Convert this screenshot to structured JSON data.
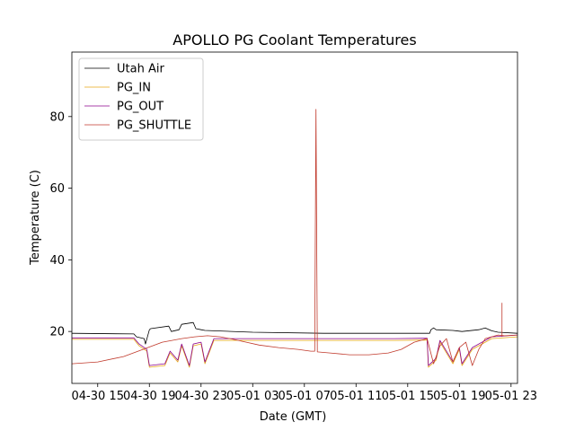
{
  "chart_data": {
    "type": "line",
    "title": "APOLLO PG Coolant Temperatures",
    "xlabel": "Date (GMT)",
    "ylabel": "Temperature (C)",
    "x_unit": "hours since 04-30 12:00 GMT",
    "xlim": [
      1.0,
      35.5
    ],
    "ylim": [
      5.5,
      98
    ],
    "yticks": [
      20,
      40,
      60,
      80
    ],
    "xticks": [
      {
        "value": 3,
        "label": "04-30 15"
      },
      {
        "value": 7,
        "label": "04-30 19"
      },
      {
        "value": 11,
        "label": "04-30 23"
      },
      {
        "value": 15,
        "label": "05-01 03"
      },
      {
        "value": 19,
        "label": "05-01 07"
      },
      {
        "value": 23,
        "label": "05-01 11"
      },
      {
        "value": 27,
        "label": "05-01 15"
      },
      {
        "value": 31,
        "label": "05-01 19"
      },
      {
        "value": 35,
        "label": "05-01 23"
      }
    ],
    "legend_position": "top-left",
    "series": [
      {
        "name": "Utah Air",
        "color": "#000000",
        "x": [
          1.0,
          5.8,
          6.0,
          6.6,
          6.7,
          7.0,
          7.1,
          8.5,
          8.7,
          9.3,
          9.5,
          10.4,
          10.6,
          11.0,
          11.3,
          15.0,
          20.5,
          26.0,
          28.7,
          28.8,
          29.0,
          29.2,
          30.5,
          31.2,
          32.5,
          33.0,
          33.5,
          34.0,
          35.5
        ],
        "values": [
          19.5,
          19.3,
          18.5,
          18.0,
          16.5,
          20.5,
          20.8,
          21.5,
          20.0,
          20.5,
          22.0,
          22.5,
          20.8,
          20.5,
          20.3,
          19.8,
          19.5,
          19.5,
          19.5,
          20.5,
          21.0,
          20.5,
          20.3,
          20.0,
          20.5,
          21.0,
          20.2,
          19.8,
          19.5
        ]
      },
      {
        "name": "PG_IN",
        "color": "#e6a817",
        "x": [
          1.0,
          5.8,
          6.2,
          6.8,
          7.0,
          8.2,
          8.6,
          9.2,
          9.5,
          10.1,
          10.4,
          11.0,
          11.3,
          12.0,
          26.0,
          28.5,
          28.6,
          29.2,
          29.5,
          30.5,
          31.0,
          31.2,
          32.0,
          33.0,
          33.5,
          35.5
        ],
        "values": [
          17.8,
          17.8,
          16.0,
          14.5,
          10.0,
          10.5,
          14.0,
          11.5,
          16.0,
          10.0,
          16.0,
          16.5,
          11.0,
          17.5,
          17.5,
          17.6,
          10.0,
          12.0,
          17.0,
          11.0,
          15.0,
          10.5,
          15.0,
          17.0,
          18.0,
          18.5
        ]
      },
      {
        "name": "PG_OUT",
        "color": "#8b008b",
        "x": [
          1.0,
          5.8,
          6.2,
          6.8,
          7.0,
          8.2,
          8.6,
          9.2,
          9.5,
          10.1,
          10.4,
          11.0,
          11.3,
          12.0,
          26.0,
          28.5,
          28.6,
          29.2,
          29.5,
          30.5,
          31.0,
          31.2,
          32.0,
          33.0,
          33.5,
          35.5
        ],
        "values": [
          18.2,
          18.2,
          16.5,
          15.0,
          10.5,
          11.0,
          14.5,
          12.0,
          16.5,
          10.5,
          16.5,
          17.0,
          11.5,
          18.0,
          18.0,
          18.1,
          10.5,
          12.5,
          17.5,
          11.5,
          15.5,
          11.0,
          15.5,
          17.5,
          18.5,
          19.0
        ]
      },
      {
        "name": "PG_SHUTTLE",
        "color": "#c0392b",
        "x": [
          1.0,
          3.0,
          5.0,
          6.5,
          8.0,
          9.5,
          10.5,
          11.5,
          12.5,
          13.5,
          14.5,
          15.5,
          17.0,
          18.5,
          19.5,
          19.8,
          19.9,
          20.0,
          21.0,
          22.5,
          24.0,
          25.5,
          26.5,
          27.5,
          28.5,
          29.0,
          29.5,
          30.0,
          30.5,
          31.0,
          31.5,
          32.0,
          32.5,
          33.0,
          33.5,
          34.0,
          34.5,
          35.5
        ],
        "values": [
          11.0,
          11.5,
          13.0,
          15.0,
          17.0,
          18.0,
          18.5,
          18.8,
          18.5,
          17.8,
          17.0,
          16.2,
          15.5,
          15.0,
          14.5,
          14.5,
          82.0,
          14.3,
          14.0,
          13.5,
          13.5,
          14.0,
          15.0,
          17.0,
          18.0,
          11.0,
          16.0,
          18.0,
          11.5,
          15.5,
          17.0,
          10.5,
          15.0,
          18.0,
          18.5,
          19.0,
          18.8,
          19.0
        ]
      }
    ],
    "annotations": [
      {
        "series": "PG_SHUTTLE",
        "x": 34.3,
        "y_from": 18.5,
        "y_to": 28.0
      }
    ]
  }
}
